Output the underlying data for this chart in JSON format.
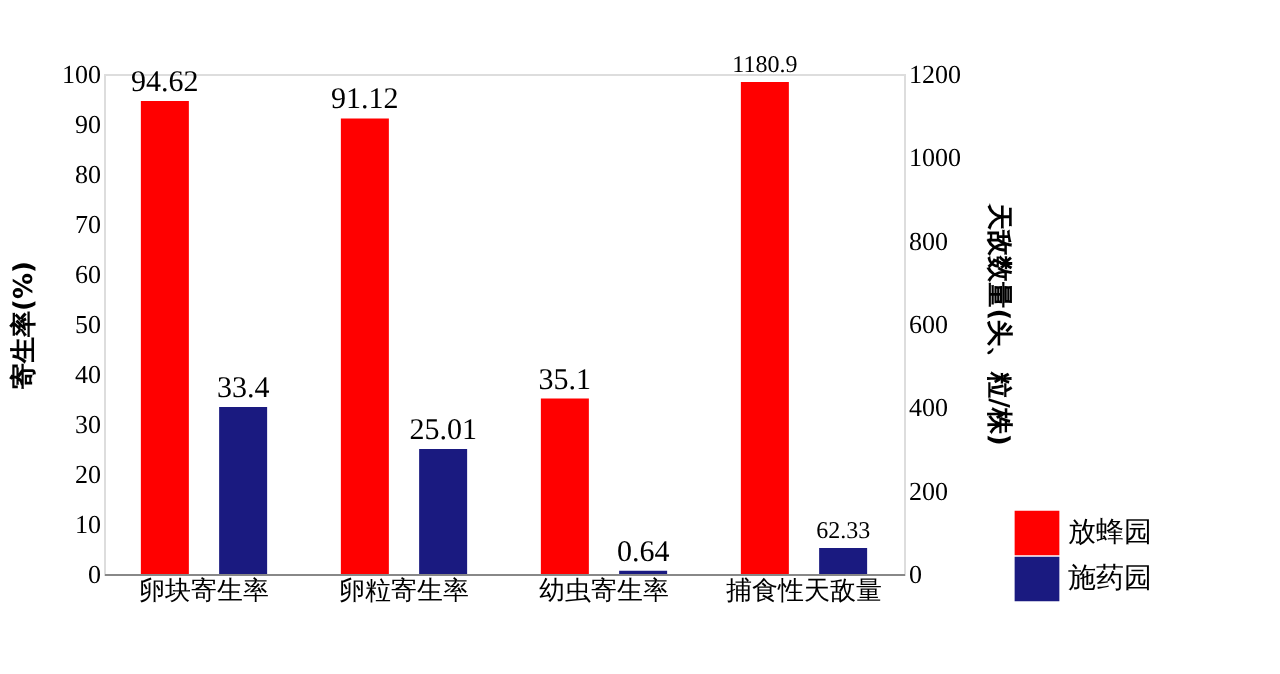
{
  "chart_data": {
    "type": "bar",
    "ylabel": "寄生率(%)",
    "y2label": "天敌数量(头、粒/株)",
    "categories": [
      "卵块寄生率",
      "卵粒寄生率",
      "幼虫寄生率",
      "捕食性天敌量"
    ],
    "series": [
      {
        "name": "放蜂园",
        "color": "#ff0000",
        "values": [
          94.62,
          91.12,
          35.1,
          null
        ]
      },
      {
        "name": "施药园",
        "color": "#1a1a80",
        "values": [
          33.4,
          25.01,
          0.64,
          null
        ]
      },
      {
        "color": "#ff0000",
        "axis": "y2",
        "values": [
          null,
          null,
          null,
          1180.9
        ]
      },
      {
        "color": "#1a1a80",
        "axis": "y2",
        "values": [
          null,
          null,
          null,
          62.33
        ]
      }
    ],
    "ylim": [
      0,
      100
    ],
    "yticks": [
      0,
      10,
      20,
      30,
      40,
      50,
      60,
      70,
      80,
      90,
      100
    ],
    "y2lim": [
      0,
      1200
    ],
    "y2ticks": [
      0,
      200,
      400,
      600,
      800,
      1000,
      1200
    ],
    "data_labels": true,
    "legend": "bottom right",
    "grid": false
  }
}
